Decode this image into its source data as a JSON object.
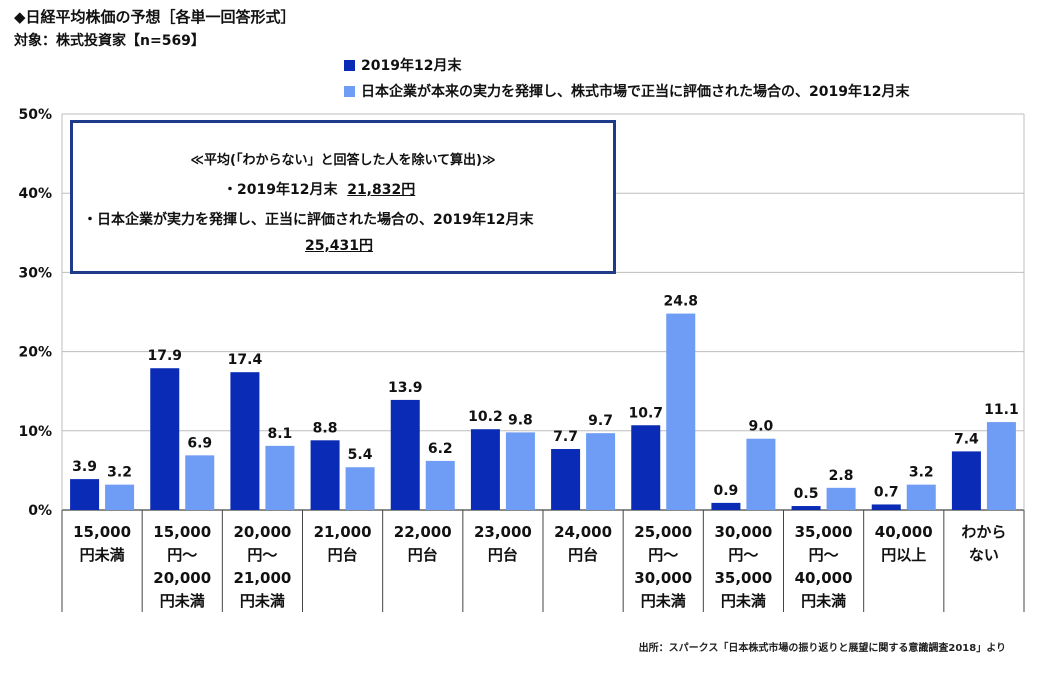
{
  "header": {
    "title": "◆日経平均株価の予想［各単一回答形式］",
    "subtitle": "対象：株式投資家【n=569】"
  },
  "summary_box": {
    "heading": "≪平均(「わからない」と回答した人を除いて算出)≫",
    "line1_label": "・2019年12月末",
    "line1_value": "21,832円",
    "line2_label": "・日本企業が実力を発揮し、正当に評価された場合の、2019年12月末",
    "line2_value": "25,431円"
  },
  "source": "出所：スパークス「日本株式市場の振り返りと展望に関する意識調査2018」より",
  "chart_data": {
    "type": "bar",
    "categories": [
      [
        "15,000",
        "円未満"
      ],
      [
        "15,000",
        "円～",
        "20,000",
        "円未満"
      ],
      [
        "20,000",
        "円～",
        "21,000",
        "円未満"
      ],
      [
        "21,000",
        "円台"
      ],
      [
        "22,000",
        "円台"
      ],
      [
        "23,000",
        "円台"
      ],
      [
        "24,000",
        "円台"
      ],
      [
        "25,000",
        "円～",
        "30,000",
        "円未満"
      ],
      [
        "30,000",
        "円～",
        "35,000",
        "円未満"
      ],
      [
        "35,000",
        "円～",
        "40,000",
        "円未満"
      ],
      [
        "40,000",
        "円以上"
      ],
      [
        "わから",
        "ない"
      ]
    ],
    "series": [
      {
        "name": "2019年12月末",
        "color": "#0a2bb5",
        "values": [
          3.9,
          17.9,
          17.4,
          8.8,
          13.9,
          10.2,
          7.7,
          10.7,
          0.9,
          0.5,
          0.7,
          7.4
        ]
      },
      {
        "name": "日本企業が本来の実力を発揮し、株式市場で正当に評価された場合の、2019年12月末",
        "color": "#6f9cf4",
        "values": [
          3.2,
          6.9,
          8.1,
          5.4,
          6.2,
          9.8,
          9.7,
          24.8,
          9.0,
          2.8,
          3.2,
          11.1
        ]
      }
    ],
    "yticks": [
      "0%",
      "10%",
      "20%",
      "30%",
      "40%",
      "50%"
    ],
    "ylim": [
      0,
      50
    ],
    "grid": true,
    "legend_position": "top-right"
  }
}
